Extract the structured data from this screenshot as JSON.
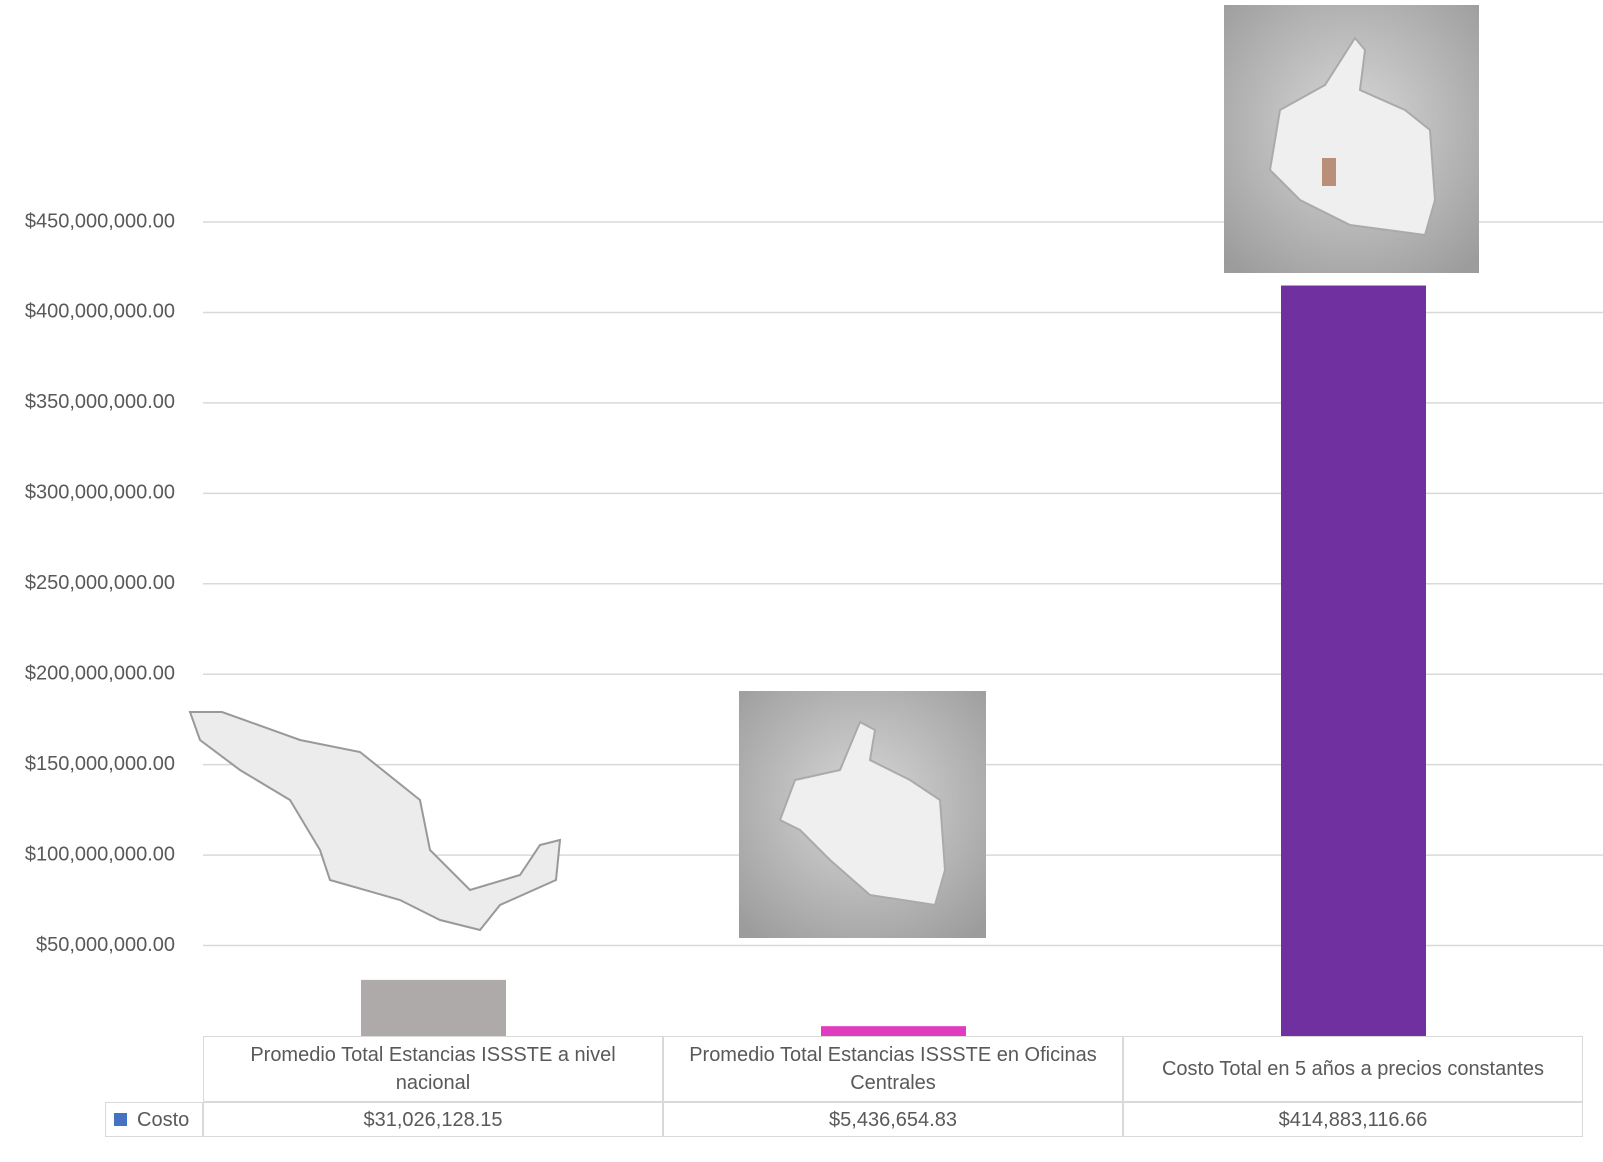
{
  "chart_data": {
    "type": "bar",
    "categories": [
      "Promedio Total Estancias ISSSTE a nivel nacional",
      "Promedio Total Estancias ISSSTE en Oficinas Centrales",
      "Costo Total en 5 años a precios constantes"
    ],
    "series": [
      {
        "name": "Costo",
        "color": "#4472c4",
        "values": [
          31026128.15,
          5436654.83,
          414883116.66
        ],
        "value_labels": [
          "$31,026,128.15",
          "$5,436,654.83",
          "$414,883,116.66"
        ],
        "bar_colors": [
          "#aeaaaa",
          "#e03cbf",
          "#7030a0"
        ]
      }
    ],
    "ylim": [
      0,
      450000000
    ],
    "yticks": [
      {
        "value": 50000000,
        "label": "$50,000,000.00"
      },
      {
        "value": 100000000,
        "label": "$100,000,000.00"
      },
      {
        "value": 150000000,
        "label": "$150,000,000.00"
      },
      {
        "value": 200000000,
        "label": "$200,000,000.00"
      },
      {
        "value": 250000000,
        "label": "$250,000,000.00"
      },
      {
        "value": 300000000,
        "label": "$300,000,000.00"
      },
      {
        "value": 350000000,
        "label": "$350,000,000.00"
      },
      {
        "value": 400000000,
        "label": "$400,000,000.00"
      },
      {
        "value": 450000000,
        "label": "$450,000,000.00"
      }
    ],
    "grid": true
  }
}
